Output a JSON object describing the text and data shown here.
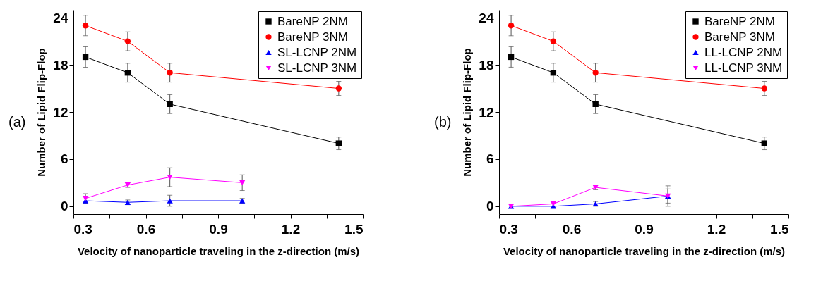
{
  "chart_data": [
    {
      "type": "line",
      "annotations": [
        "(a)"
      ],
      "xlabel": "Velocity of nanoparticle traveling in the z-direction (m/s)",
      "ylabel": "Number of Lipid Flip-Flop",
      "xlim": [
        0.3,
        1.5
      ],
      "ylim": [
        -1,
        25
      ],
      "xticks": [
        0.3,
        {
          "value": 0.45,
          "label": null
        },
        0.6,
        {
          "value": 0.75,
          "label": null
        },
        0.9,
        {
          "value": 1.05,
          "label": null
        },
        1.2,
        {
          "value": 1.35,
          "label": null
        },
        1.5
      ],
      "yticks": [
        0,
        6,
        12,
        18,
        24
      ],
      "grid": false,
      "legend": "top right",
      "line_style": "solid",
      "series": [
        {
          "name": "BareNP 2NM",
          "color": "#000000",
          "marker": "square",
          "x": [
            0.35,
            0.525,
            0.7,
            1.4
          ],
          "values": [
            19,
            17,
            13,
            8
          ],
          "errors": [
            1.3,
            1.2,
            1.2,
            0.8
          ]
        },
        {
          "name": "BareNP 3NM",
          "color": "#ff0000",
          "marker": "circle",
          "x": [
            0.35,
            0.525,
            0.7,
            1.4
          ],
          "values": [
            23,
            21,
            17,
            15
          ],
          "errors": [
            1.3,
            1.2,
            1.2,
            0.9
          ]
        },
        {
          "name": "SL-LCNP 2NM",
          "color": "#0000ff",
          "marker": "triangle",
          "x": [
            0.35,
            0.525,
            0.7,
            1.0
          ],
          "values": [
            0.7,
            0.5,
            0.7,
            0.7
          ],
          "errors": [
            null,
            0.3,
            0.7,
            0.3
          ]
        },
        {
          "name": "SL-LCNP 3NM",
          "color": "#ff00ff",
          "marker": "triangle-down",
          "x": [
            0.35,
            0.525,
            0.7,
            1.0
          ],
          "values": [
            1,
            2.7,
            3.7,
            3
          ],
          "errors": [
            0.6,
            0.3,
            1.2,
            1
          ]
        }
      ]
    },
    {
      "type": "line",
      "annotations": [
        "(b)"
      ],
      "xlabel": "Velocity of nanoparticle traveling in the z-direction (m/s)",
      "ylabel": "Number of Lipid Flip-Flop",
      "xlim": [
        0.3,
        1.5
      ],
      "ylim": [
        -1,
        25
      ],
      "xticks": [
        0.3,
        {
          "value": 0.45,
          "label": null
        },
        0.6,
        {
          "value": 0.75,
          "label": null
        },
        0.9,
        {
          "value": 1.05,
          "label": null
        },
        1.2,
        {
          "value": 1.35,
          "label": null
        },
        1.5
      ],
      "yticks": [
        0,
        6,
        12,
        18,
        24
      ],
      "grid": false,
      "legend": "top right",
      "line_style": "solid",
      "series": [
        {
          "name": "BareNP 2NM",
          "color": "#000000",
          "marker": "square",
          "x": [
            0.35,
            0.525,
            0.7,
            1.4
          ],
          "values": [
            19,
            17,
            13,
            8
          ],
          "errors": [
            1.3,
            1.2,
            1.2,
            0.8
          ]
        },
        {
          "name": "BareNP 3NM",
          "color": "#ff0000",
          "marker": "circle",
          "x": [
            0.35,
            0.525,
            0.7,
            1.4
          ],
          "values": [
            23,
            21,
            17,
            15
          ],
          "errors": [
            1.3,
            1.2,
            1.2,
            0.9
          ]
        },
        {
          "name": "LL-LCNP 2NM",
          "color": "#0000ff",
          "marker": "triangle",
          "x": [
            0.35,
            0.525,
            0.7,
            1.0
          ],
          "values": [
            0,
            0,
            0.3,
            1.3
          ],
          "errors": [
            null,
            null,
            0.3,
            1.3
          ]
        },
        {
          "name": "LL-LCNP 3NM",
          "color": "#ff00ff",
          "marker": "triangle-down",
          "x": [
            0.35,
            0.525,
            0.7,
            1.0
          ],
          "values": [
            0,
            0.3,
            2.4,
            1.3
          ],
          "errors": [
            null,
            null,
            0.3,
            0.9
          ]
        }
      ]
    }
  ]
}
